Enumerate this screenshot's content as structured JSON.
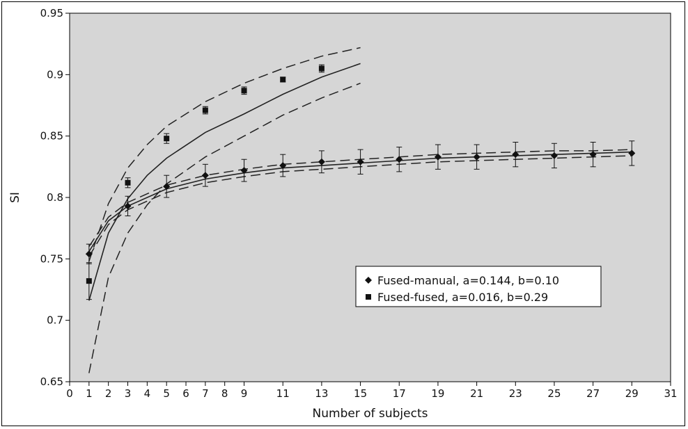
{
  "chart_data": {
    "type": "scatter",
    "xlabel": "Number of subjects",
    "ylabel": "SI",
    "xlim": [
      0,
      31
    ],
    "ylim": [
      0.65,
      0.95
    ],
    "x_ticks": [
      0,
      1,
      2,
      3,
      4,
      5,
      6,
      7,
      8,
      9,
      11,
      13,
      15,
      17,
      19,
      21,
      23,
      25,
      27,
      29,
      31
    ],
    "y_ticks": [
      0.65,
      0.7,
      0.75,
      0.8,
      0.85,
      0.9,
      0.95
    ],
    "y_tick_labels": [
      "0.65",
      "0.7",
      "0.75",
      "0.8",
      "0.85",
      "0.9",
      "0.95"
    ],
    "plot_background": "#d6d6d6",
    "grid": false,
    "legend_position": "lower-right",
    "series": [
      {
        "name": "Fused-manual, a=0.144, b=0.10",
        "marker": "diamond",
        "x": [
          1,
          3,
          5,
          7,
          9,
          11,
          13,
          15,
          17,
          19,
          21,
          23,
          25,
          27,
          29
        ],
        "y": [
          0.754,
          0.793,
          0.809,
          0.818,
          0.822,
          0.826,
          0.829,
          0.829,
          0.831,
          0.833,
          0.833,
          0.835,
          0.834,
          0.835,
          0.836
        ],
        "error": [
          0.008,
          0.008,
          0.009,
          0.009,
          0.009,
          0.009,
          0.009,
          0.01,
          0.01,
          0.01,
          0.01,
          0.01,
          0.01,
          0.01,
          0.01
        ],
        "fit": {
          "x_range": [
            1,
            29
          ],
          "points": [
            [
              1,
              0.756
            ],
            [
              2,
              0.781
            ],
            [
              3,
              0.793
            ],
            [
              5,
              0.807
            ],
            [
              7,
              0.815
            ],
            [
              9,
              0.82
            ],
            [
              11,
              0.824
            ],
            [
              13,
              0.826
            ],
            [
              15,
              0.828
            ],
            [
              17,
              0.83
            ],
            [
              19,
              0.832
            ],
            [
              21,
              0.833
            ],
            [
              23,
              0.834
            ],
            [
              25,
              0.835
            ],
            [
              27,
              0.836
            ],
            [
              29,
              0.837
            ]
          ]
        },
        "bounds_upper": [
          [
            1,
            0.76
          ],
          [
            2,
            0.784
          ],
          [
            3,
            0.796
          ],
          [
            5,
            0.81
          ],
          [
            7,
            0.818
          ],
          [
            9,
            0.823
          ],
          [
            11,
            0.827
          ],
          [
            13,
            0.829
          ],
          [
            15,
            0.831
          ],
          [
            17,
            0.833
          ],
          [
            19,
            0.835
          ],
          [
            21,
            0.836
          ],
          [
            23,
            0.837
          ],
          [
            25,
            0.838
          ],
          [
            27,
            0.838
          ],
          [
            29,
            0.839
          ]
        ],
        "bounds_lower": [
          [
            1,
            0.752
          ],
          [
            2,
            0.778
          ],
          [
            3,
            0.79
          ],
          [
            5,
            0.804
          ],
          [
            7,
            0.812
          ],
          [
            9,
            0.817
          ],
          [
            11,
            0.821
          ],
          [
            13,
            0.823
          ],
          [
            15,
            0.825
          ],
          [
            17,
            0.827
          ],
          [
            19,
            0.829
          ],
          [
            21,
            0.83
          ],
          [
            23,
            0.831
          ],
          [
            25,
            0.832
          ],
          [
            27,
            0.833
          ],
          [
            29,
            0.834
          ]
        ]
      },
      {
        "name": "Fused-fused, a=0.016, b=0.29",
        "marker": "square",
        "x": [
          1,
          3,
          5,
          7,
          9,
          11,
          13
        ],
        "y": [
          0.732,
          0.812,
          0.848,
          0.871,
          0.887,
          0.896,
          0.905
        ],
        "error": [
          0.015,
          0.004,
          0.004,
          0.003,
          0.003,
          0.002,
          0.003
        ],
        "fit": {
          "x_range": [
            1,
            15
          ],
          "points": [
            [
              1,
              0.716
            ],
            [
              2,
              0.771
            ],
            [
              3,
              0.799
            ],
            [
              4,
              0.818
            ],
            [
              5,
              0.832
            ],
            [
              7,
              0.853
            ],
            [
              9,
              0.868
            ],
            [
              11,
              0.884
            ],
            [
              13,
              0.898
            ],
            [
              15,
              0.909
            ]
          ]
        },
        "bounds_upper": [
          [
            1,
            0.748
          ],
          [
            2,
            0.795
          ],
          [
            3,
            0.824
          ],
          [
            4,
            0.843
          ],
          [
            5,
            0.858
          ],
          [
            7,
            0.878
          ],
          [
            9,
            0.893
          ],
          [
            11,
            0.905
          ],
          [
            13,
            0.915
          ],
          [
            15,
            0.922
          ]
        ],
        "bounds_lower": [
          [
            1,
            0.657
          ],
          [
            2,
            0.735
          ],
          [
            3,
            0.771
          ],
          [
            4,
            0.794
          ],
          [
            5,
            0.811
          ],
          [
            7,
            0.833
          ],
          [
            9,
            0.85
          ],
          [
            11,
            0.867
          ],
          [
            13,
            0.881
          ],
          [
            15,
            0.893
          ]
        ]
      }
    ]
  }
}
